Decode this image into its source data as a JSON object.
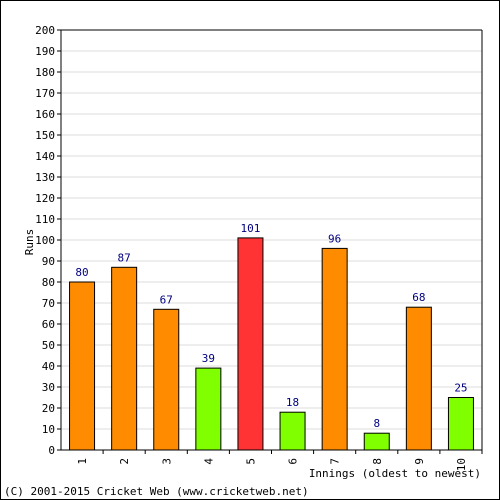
{
  "chart_data": {
    "type": "bar",
    "categories": [
      "1",
      "2",
      "3",
      "4",
      "5",
      "6",
      "7",
      "8",
      "9",
      "10"
    ],
    "values": [
      80,
      87,
      67,
      39,
      101,
      18,
      96,
      8,
      68,
      25
    ],
    "bar_colors": [
      "#ff8c00",
      "#ff8c00",
      "#ff8c00",
      "#7fff00",
      "#ff3333",
      "#7fff00",
      "#ff8c00",
      "#7fff00",
      "#ff8c00",
      "#7fff00"
    ],
    "ylim": [
      0,
      200
    ],
    "ytick_step": 10,
    "ylabel": "Runs",
    "xlabel": "Innings (oldest to newest)",
    "grid": true,
    "value_label_color": "#000080"
  },
  "footer": {
    "copyright": "(C) 2001-2015 Cricket Web (www.cricketweb.net)"
  }
}
